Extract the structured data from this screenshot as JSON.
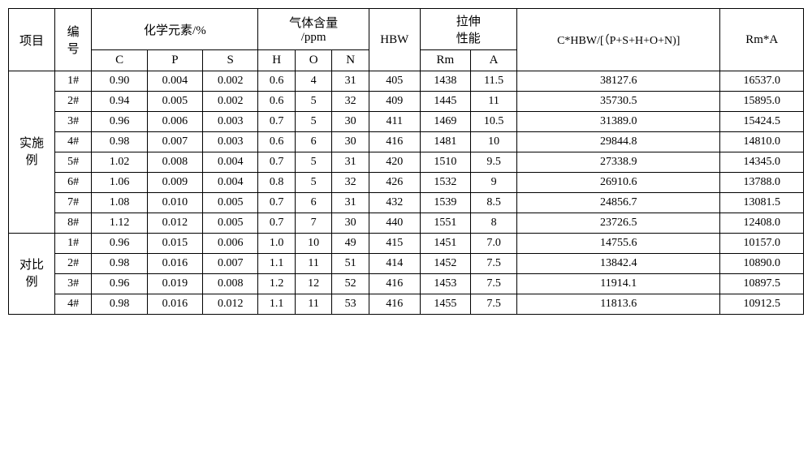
{
  "headers": {
    "project": "项目",
    "number": "编\n号",
    "chem_group": "化学元素/%",
    "gas_group": "气体含量\n/ppm",
    "hbw": "HBW",
    "tensile_group": "拉伸\n性能",
    "formula": "C*HBW/[（P+S+H+O+N)]",
    "rma": "Rm*A",
    "c": "C",
    "p": "P",
    "s": "S",
    "h": "H",
    "o": "O",
    "n": "N",
    "rm": "Rm",
    "a": "A"
  },
  "groups": [
    {
      "label": "实施\n例",
      "rows": [
        {
          "num": "1#",
          "c": "0.90",
          "p": "0.004",
          "s": "0.002",
          "h": "0.6",
          "o": "4",
          "n": "31",
          "hbw": "405",
          "rm": "1438",
          "a": "11.5",
          "formula": "38127.6",
          "rma": "16537.0"
        },
        {
          "num": "2#",
          "c": "0.94",
          "p": "0.005",
          "s": "0.002",
          "h": "0.6",
          "o": "5",
          "n": "32",
          "hbw": "409",
          "rm": "1445",
          "a": "11",
          "formula": "35730.5",
          "rma": "15895.0"
        },
        {
          "num": "3#",
          "c": "0.96",
          "p": "0.006",
          "s": "0.003",
          "h": "0.7",
          "o": "5",
          "n": "30",
          "hbw": "411",
          "rm": "1469",
          "a": "10.5",
          "formula": "31389.0",
          "rma": "15424.5"
        },
        {
          "num": "4#",
          "c": "0.98",
          "p": "0.007",
          "s": "0.003",
          "h": "0.6",
          "o": "6",
          "n": "30",
          "hbw": "416",
          "rm": "1481",
          "a": "10",
          "formula": "29844.8",
          "rma": "14810.0"
        },
        {
          "num": "5#",
          "c": "1.02",
          "p": "0.008",
          "s": "0.004",
          "h": "0.7",
          "o": "5",
          "n": "31",
          "hbw": "420",
          "rm": "1510",
          "a": "9.5",
          "formula": "27338.9",
          "rma": "14345.0"
        },
        {
          "num": "6#",
          "c": "1.06",
          "p": "0.009",
          "s": "0.004",
          "h": "0.8",
          "o": "5",
          "n": "32",
          "hbw": "426",
          "rm": "1532",
          "a": "9",
          "formula": "26910.6",
          "rma": "13788.0"
        },
        {
          "num": "7#",
          "c": "1.08",
          "p": "0.010",
          "s": "0.005",
          "h": "0.7",
          "o": "6",
          "n": "31",
          "hbw": "432",
          "rm": "1539",
          "a": "8.5",
          "formula": "24856.7",
          "rma": "13081.5"
        },
        {
          "num": "8#",
          "c": "1.12",
          "p": "0.012",
          "s": "0.005",
          "h": "0.7",
          "o": "7",
          "n": "30",
          "hbw": "440",
          "rm": "1551",
          "a": "8",
          "formula": "23726.5",
          "rma": "12408.0"
        }
      ]
    },
    {
      "label": "对比\n例",
      "rows": [
        {
          "num": "1#",
          "c": "0.96",
          "p": "0.015",
          "s": "0.006",
          "h": "1.0",
          "o": "10",
          "n": "49",
          "hbw": "415",
          "rm": "1451",
          "a": "7.0",
          "formula": "14755.6",
          "rma": "10157.0"
        },
        {
          "num": "2#",
          "c": "0.98",
          "p": "0.016",
          "s": "0.007",
          "h": "1.1",
          "o": "11",
          "n": "51",
          "hbw": "414",
          "rm": "1452",
          "a": "7.5",
          "formula": "13842.4",
          "rma": "10890.0"
        },
        {
          "num": "3#",
          "c": "0.96",
          "p": "0.019",
          "s": "0.008",
          "h": "1.2",
          "o": "12",
          "n": "52",
          "hbw": "416",
          "rm": "1453",
          "a": "7.5",
          "formula": "11914.1",
          "rma": "10897.5"
        },
        {
          "num": "4#",
          "c": "0.98",
          "p": "0.016",
          "s": "0.012",
          "h": "1.1",
          "o": "11",
          "n": "53",
          "hbw": "416",
          "rm": "1455",
          "a": "7.5",
          "formula": "11813.6",
          "rma": "10912.5"
        }
      ]
    }
  ],
  "column_widths": {
    "project": 50,
    "number": 40,
    "cps": 60,
    "hon": 40,
    "hbw": 55,
    "rm": 55,
    "a": 50,
    "formula": 220,
    "rma": 90
  }
}
